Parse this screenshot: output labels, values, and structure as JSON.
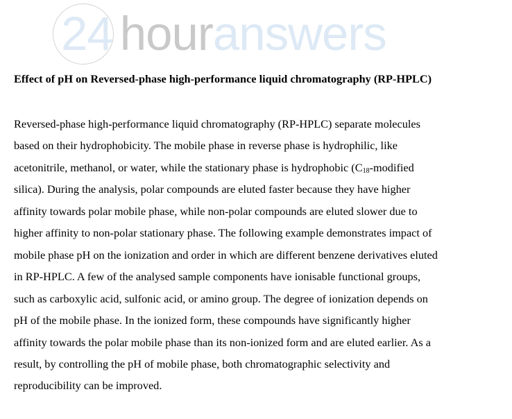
{
  "logo": {
    "part1": "24",
    "part2": "hour",
    "part3": "answers"
  },
  "title": "Effect of pH on Reversed-phase high-performance liquid chromatography (RP-HPLC)",
  "lines": [
    "Reversed-phase high-performance liquid chromatography (RP-HPLC) separate molecules",
    "based on their hydrophobicity.  The mobile phase in reverse phase is hydrophilic, like",
    {
      "before": "acetonitrile, methanol, or water, while the stationary phase is hydrophobic (C",
      "sub": "18",
      "after": "-modified"
    },
    "silica). During the analysis, polar compounds are eluted faster because they have higher",
    "affinity towards polar mobile phase, while non-polar compounds are eluted slower due to",
    "higher affinity to non-polar stationary phase. The following example demonstrates impact of",
    "mobile phase pH on the ionization and order in which are different benzene derivatives eluted",
    "in RP-HPLC. A few of the analysed sample components have ionisable functional groups,",
    "such as carboxylic acid, sulfonic acid, or amino group. The degree of ionization depends on",
    "pH of the mobile phase. In the ionized form, these compounds have significantly higher",
    "affinity towards the polar mobile phase than its non-ionized form and are eluted earlier. As a",
    "result, by controlling the pH of mobile phase, both chromatographic selectivity and",
    "reproducibility can be improved."
  ],
  "colors": {
    "logo_blue": "#dde9f5",
    "logo_gray": "#c9c9c9"
  }
}
